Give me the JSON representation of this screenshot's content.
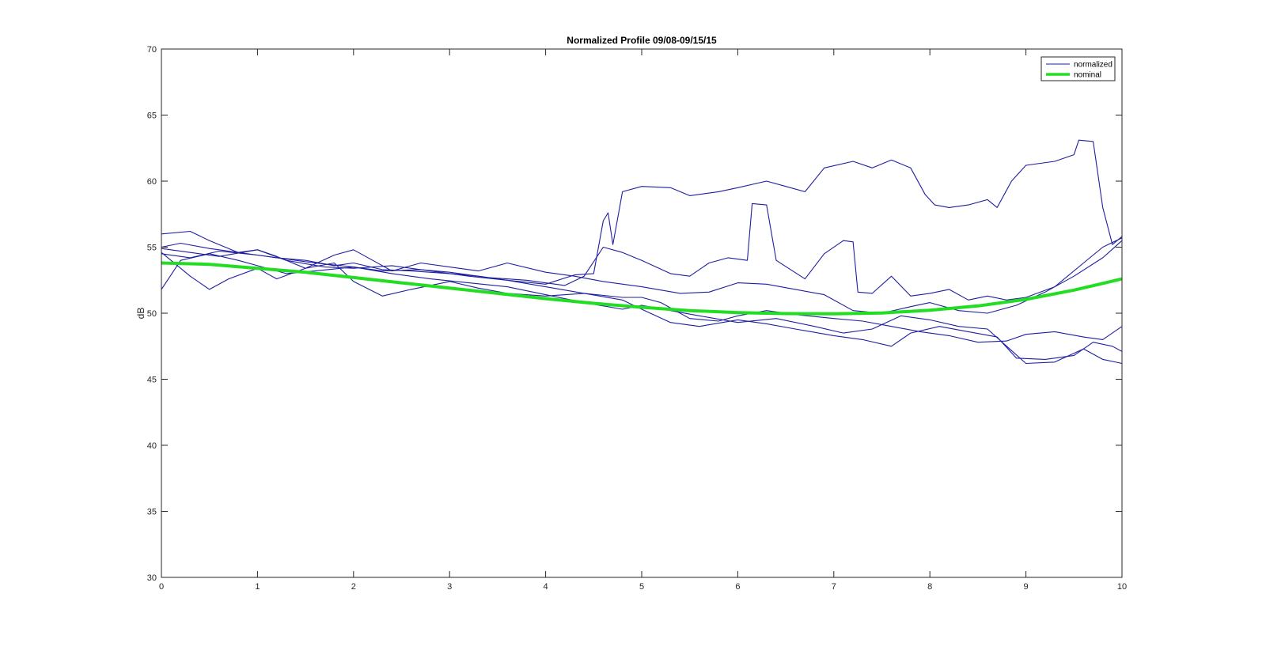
{
  "chart_data": {
    "type": "line",
    "title": "Normalized Profile 09/08-09/15/15",
    "xlabel": "",
    "ylabel": "dB",
    "xlim": [
      0,
      10
    ],
    "ylim": [
      30,
      70
    ],
    "x_ticks": [
      0,
      1,
      2,
      3,
      4,
      5,
      6,
      7,
      8,
      9,
      10
    ],
    "y_ticks": [
      30,
      35,
      40,
      45,
      50,
      55,
      60,
      65,
      70
    ],
    "grid": false,
    "legend_position": "top-right",
    "legend": [
      {
        "label": "normalized",
        "color": "#1f1fa0"
      },
      {
        "label": "nominal",
        "color": "#22dd22"
      }
    ],
    "series": [
      {
        "name": "normalized",
        "color": "#1f1fa0",
        "points": [
          [
            0,
            55.0
          ],
          [
            0.2,
            55.3
          ],
          [
            0.5,
            54.9
          ],
          [
            0.8,
            54.6
          ],
          [
            1.0,
            54.4
          ],
          [
            1.2,
            54.2
          ],
          [
            1.5,
            54.0
          ],
          [
            1.8,
            53.6
          ],
          [
            2.0,
            53.8
          ],
          [
            2.3,
            53.3
          ],
          [
            2.6,
            53.2
          ],
          [
            3.0,
            53.0
          ],
          [
            3.3,
            52.8
          ],
          [
            3.6,
            52.5
          ],
          [
            4.0,
            52.2
          ],
          [
            4.3,
            52.9
          ],
          [
            4.5,
            53.0
          ],
          [
            4.6,
            57.0
          ],
          [
            4.65,
            57.6
          ],
          [
            4.7,
            55.2
          ],
          [
            4.8,
            59.2
          ],
          [
            5.0,
            59.6
          ],
          [
            5.3,
            59.5
          ],
          [
            5.5,
            58.9
          ],
          [
            5.8,
            59.2
          ],
          [
            6.0,
            59.5
          ],
          [
            6.3,
            60.0
          ],
          [
            6.5,
            59.6
          ],
          [
            6.7,
            59.2
          ],
          [
            6.9,
            61.0
          ],
          [
            7.2,
            61.5
          ],
          [
            7.4,
            61.0
          ],
          [
            7.6,
            61.6
          ],
          [
            7.8,
            61.0
          ],
          [
            7.95,
            59.0
          ],
          [
            8.05,
            58.2
          ],
          [
            8.2,
            58.0
          ],
          [
            8.4,
            58.2
          ],
          [
            8.6,
            58.6
          ],
          [
            8.7,
            58.0
          ],
          [
            8.85,
            60.0
          ],
          [
            9.0,
            61.2
          ],
          [
            9.3,
            61.5
          ],
          [
            9.5,
            62.0
          ],
          [
            9.55,
            63.1
          ],
          [
            9.7,
            63.0
          ],
          [
            9.8,
            58.0
          ],
          [
            9.9,
            55.2
          ],
          [
            10.0,
            55.8
          ]
        ]
      },
      {
        "name": "normalized",
        "color": "#1f1fa0",
        "points": [
          [
            0,
            54.5
          ],
          [
            0.3,
            54.2
          ],
          [
            0.6,
            54.7
          ],
          [
            1.0,
            54.4
          ],
          [
            1.3,
            54.1
          ],
          [
            1.6,
            53.8
          ],
          [
            2.0,
            53.5
          ],
          [
            2.3,
            53.2
          ],
          [
            2.7,
            53.3
          ],
          [
            3.0,
            53.1
          ],
          [
            3.4,
            52.7
          ],
          [
            3.8,
            52.5
          ],
          [
            4.2,
            52.1
          ],
          [
            4.4,
            52.8
          ],
          [
            4.6,
            55.0
          ],
          [
            4.8,
            54.6
          ],
          [
            5.0,
            54.0
          ],
          [
            5.3,
            53.0
          ],
          [
            5.5,
            52.8
          ],
          [
            5.7,
            53.8
          ],
          [
            5.9,
            54.2
          ],
          [
            6.1,
            54.0
          ],
          [
            6.15,
            58.3
          ],
          [
            6.3,
            58.2
          ],
          [
            6.4,
            54.0
          ],
          [
            6.7,
            52.6
          ],
          [
            6.9,
            54.5
          ],
          [
            7.1,
            55.5
          ],
          [
            7.2,
            55.4
          ],
          [
            7.25,
            51.6
          ],
          [
            7.4,
            51.5
          ],
          [
            7.6,
            52.8
          ],
          [
            7.8,
            51.3
          ],
          [
            8.0,
            51.5
          ],
          [
            8.2,
            51.8
          ],
          [
            8.4,
            51.0
          ],
          [
            8.6,
            51.3
          ],
          [
            8.8,
            51.0
          ],
          [
            9.0,
            51.2
          ],
          [
            9.3,
            52.0
          ],
          [
            9.6,
            53.8
          ],
          [
            9.8,
            55.0
          ],
          [
            10.0,
            55.7
          ]
        ]
      },
      {
        "name": "normalized",
        "color": "#1f1fa0",
        "points": [
          [
            0,
            56.0
          ],
          [
            0.3,
            56.2
          ],
          [
            0.5,
            55.5
          ],
          [
            0.8,
            54.6
          ],
          [
            1.0,
            54.8
          ],
          [
            1.2,
            54.3
          ],
          [
            1.5,
            53.4
          ],
          [
            1.8,
            54.4
          ],
          [
            2.0,
            54.8
          ],
          [
            2.2,
            54.0
          ],
          [
            2.4,
            53.2
          ],
          [
            2.7,
            53.8
          ],
          [
            3.0,
            53.5
          ],
          [
            3.3,
            53.2
          ],
          [
            3.6,
            53.8
          ],
          [
            4.0,
            53.1
          ],
          [
            4.3,
            52.8
          ],
          [
            4.6,
            52.4
          ],
          [
            5.0,
            52.0
          ],
          [
            5.4,
            51.5
          ],
          [
            5.7,
            51.6
          ],
          [
            6.0,
            52.3
          ],
          [
            6.3,
            52.2
          ],
          [
            6.6,
            51.8
          ],
          [
            6.9,
            51.4
          ],
          [
            7.2,
            50.2
          ],
          [
            7.5,
            50.0
          ],
          [
            7.8,
            50.5
          ],
          [
            8.0,
            50.8
          ],
          [
            8.3,
            50.2
          ],
          [
            8.6,
            50.0
          ],
          [
            8.9,
            50.6
          ],
          [
            9.2,
            51.6
          ],
          [
            9.5,
            52.8
          ],
          [
            9.8,
            54.2
          ],
          [
            10.0,
            55.5
          ]
        ]
      },
      {
        "name": "normalized",
        "color": "#1f1fa0",
        "points": [
          [
            0,
            54.6
          ],
          [
            0.3,
            52.8
          ],
          [
            0.5,
            51.8
          ],
          [
            0.7,
            52.6
          ],
          [
            1.0,
            53.4
          ],
          [
            1.2,
            52.6
          ],
          [
            1.5,
            53.4
          ],
          [
            1.8,
            53.8
          ],
          [
            2.0,
            52.4
          ],
          [
            2.3,
            51.3
          ],
          [
            2.6,
            51.8
          ],
          [
            3.0,
            52.4
          ],
          [
            3.3,
            51.9
          ],
          [
            3.6,
            51.5
          ],
          [
            4.0,
            51.3
          ],
          [
            4.4,
            51.5
          ],
          [
            4.8,
            51.2
          ],
          [
            5.0,
            51.2
          ],
          [
            5.2,
            50.8
          ],
          [
            5.5,
            49.6
          ],
          [
            5.8,
            49.4
          ],
          [
            6.0,
            49.8
          ],
          [
            6.3,
            50.2
          ],
          [
            6.6,
            49.9
          ],
          [
            7.0,
            49.6
          ],
          [
            7.3,
            49.4
          ],
          [
            7.6,
            49.0
          ],
          [
            7.9,
            48.6
          ],
          [
            8.2,
            48.3
          ],
          [
            8.5,
            47.8
          ],
          [
            8.8,
            47.9
          ],
          [
            9.0,
            48.4
          ],
          [
            9.3,
            48.6
          ],
          [
            9.6,
            48.2
          ],
          [
            9.8,
            48.0
          ],
          [
            10.0,
            49.0
          ]
        ]
      },
      {
        "name": "normalized",
        "color": "#1f1fa0",
        "points": [
          [
            0,
            54.9
          ],
          [
            0.3,
            54.6
          ],
          [
            0.6,
            54.3
          ],
          [
            1.0,
            54.8
          ],
          [
            1.3,
            54.0
          ],
          [
            1.7,
            53.5
          ],
          [
            2.0,
            53.4
          ],
          [
            2.4,
            53.6
          ],
          [
            2.8,
            53.2
          ],
          [
            3.2,
            52.8
          ],
          [
            3.6,
            52.5
          ],
          [
            4.0,
            52.0
          ],
          [
            4.4,
            51.5
          ],
          [
            4.8,
            51.0
          ],
          [
            5.0,
            50.3
          ],
          [
            5.3,
            49.3
          ],
          [
            5.6,
            49.0
          ],
          [
            6.0,
            49.5
          ],
          [
            6.3,
            49.2
          ],
          [
            6.6,
            48.8
          ],
          [
            7.0,
            48.3
          ],
          [
            7.3,
            48.0
          ],
          [
            7.6,
            47.5
          ],
          [
            7.8,
            48.5
          ],
          [
            8.1,
            49.0
          ],
          [
            8.4,
            48.6
          ],
          [
            8.7,
            48.2
          ],
          [
            8.9,
            46.6
          ],
          [
            9.2,
            46.5
          ],
          [
            9.5,
            46.8
          ],
          [
            9.7,
            47.8
          ],
          [
            9.9,
            47.5
          ],
          [
            10.0,
            47.1
          ]
        ]
      },
      {
        "name": "normalized",
        "color": "#1f1fa0",
        "points": [
          [
            0,
            51.8
          ],
          [
            0.2,
            54.0
          ],
          [
            0.5,
            54.5
          ],
          [
            0.8,
            54.0
          ],
          [
            1.0,
            53.6
          ],
          [
            1.3,
            53.0
          ],
          [
            1.6,
            53.2
          ],
          [
            2.0,
            53.5
          ],
          [
            2.4,
            53.0
          ],
          [
            2.8,
            52.6
          ],
          [
            3.2,
            52.3
          ],
          [
            3.6,
            52.0
          ],
          [
            4.0,
            51.4
          ],
          [
            4.4,
            50.8
          ],
          [
            4.8,
            50.3
          ],
          [
            5.0,
            50.6
          ],
          [
            5.3,
            50.2
          ],
          [
            5.6,
            49.8
          ],
          [
            6.0,
            49.3
          ],
          [
            6.4,
            49.6
          ],
          [
            6.8,
            49.0
          ],
          [
            7.1,
            48.5
          ],
          [
            7.4,
            48.8
          ],
          [
            7.7,
            49.8
          ],
          [
            8.0,
            49.5
          ],
          [
            8.3,
            49.0
          ],
          [
            8.6,
            48.8
          ],
          [
            8.8,
            47.5
          ],
          [
            9.0,
            46.2
          ],
          [
            9.3,
            46.3
          ],
          [
            9.6,
            47.3
          ],
          [
            9.8,
            46.5
          ],
          [
            10.0,
            46.2
          ]
        ]
      },
      {
        "name": "nominal",
        "color": "#22dd22",
        "points": [
          [
            0,
            53.8
          ],
          [
            0.5,
            53.7
          ],
          [
            1.0,
            53.4
          ],
          [
            1.5,
            53.1
          ],
          [
            2.0,
            52.7
          ],
          [
            2.5,
            52.3
          ],
          [
            3.0,
            51.9
          ],
          [
            3.5,
            51.5
          ],
          [
            4.0,
            51.1
          ],
          [
            4.5,
            50.75
          ],
          [
            5.0,
            50.45
          ],
          [
            5.5,
            50.2
          ],
          [
            6.0,
            50.05
          ],
          [
            6.5,
            49.97
          ],
          [
            7.0,
            49.95
          ],
          [
            7.5,
            50.02
          ],
          [
            8.0,
            50.22
          ],
          [
            8.5,
            50.55
          ],
          [
            9.0,
            51.05
          ],
          [
            9.5,
            51.75
          ],
          [
            10.0,
            52.6
          ]
        ]
      }
    ]
  }
}
